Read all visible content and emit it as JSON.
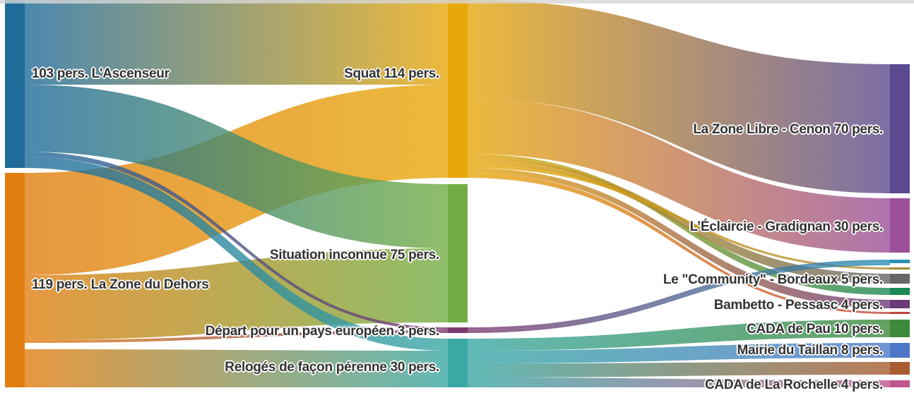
{
  "sources": [
    {
      "label": "103 pers. L'Ascenseur",
      "value": 103,
      "color": "#1f6b9a"
    },
    {
      "label": "119 pers. La Zone du Dehors",
      "value": 119,
      "color": "#e07f10"
    }
  ],
  "situations": [
    {
      "label": "Squat 114 pers.",
      "value": 114,
      "color": "#e8a80c"
    },
    {
      "label": "Situation inconnue 75 pers.",
      "value": 75,
      "color": "#72ad44"
    },
    {
      "label": "Départ pour un pays européen 3 pers.",
      "value": 3,
      "color": "#7c3a6e"
    },
    {
      "label": "Relogés de façon pérenne 30 pers.",
      "value": 30,
      "color": "#3aa8a4"
    }
  ],
  "destinations": [
    {
      "label": "La Zone Libre - Cenon 70 pers.",
      "value": 70,
      "color": "#5b4a8f"
    },
    {
      "label": "L’Éclaircie - Gradignan 30 pers.",
      "value": 30,
      "color": "#9c4f99"
    },
    {
      "label": "Le \"Community\" - Bordeaux 5 pers.",
      "value": 5,
      "color": "#666666"
    },
    {
      "label": "Bambetto - Pessasc 4 pers.",
      "value": 4,
      "color": "#6b3a78"
    },
    {
      "label": "CADA de Pau 10 pers.",
      "value": 10,
      "color": "#3e8a3c"
    },
    {
      "label": "Mairie du Taillan 8 pers.",
      "value": 8,
      "color": "#4d78c8"
    },
    {
      "label": "CADA de La Rochelle 4 pers.",
      "value": 4,
      "color": "#c0558a"
    }
  ],
  "unlabeled_colors": [
    "#2a8fb5",
    "#a88a30",
    "#1a8a55",
    "#c0443a",
    "#a85c30"
  ]
}
